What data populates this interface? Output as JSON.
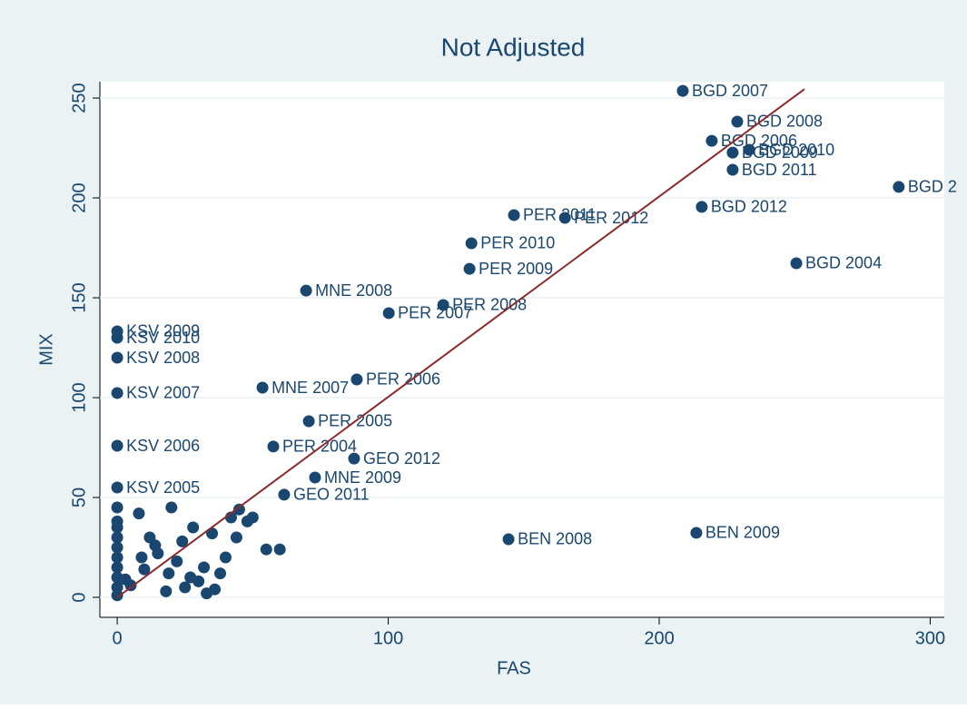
{
  "chart_data": {
    "type": "scatter",
    "title": "Not Adjusted",
    "xlabel": "FAS",
    "ylabel": "MIX",
    "xlim": [
      -6.4,
      305.2
    ],
    "ylim": [
      -10,
      258.2
    ],
    "xticks": [
      0,
      100,
      200,
      300
    ],
    "yticks": [
      0,
      50,
      100,
      150,
      200,
      250
    ],
    "grid": true,
    "series": [
      {
        "style": "markers",
        "color": "#1a476f",
        "x": [
          208.7,
          228.8,
          219.4,
          227.1,
          233.2,
          227.1,
          288.4,
          215.7,
          250.6,
          146.4,
          165.2,
          130.7,
          130.0,
          120.3,
          100.2,
          69.7,
          88.4,
          53.6,
          70.7,
          57.6,
          87.4,
          73.0,
          144.4,
          213.7,
          0,
          0,
          0,
          0,
          0,
          0,
          61.6
        ],
        "values": [
          253.6,
          238.2,
          228.6,
          222.7,
          224.1,
          214.1,
          205.5,
          195.5,
          167.3,
          191.4,
          190.0,
          177.3,
          164.5,
          146.4,
          142.3,
          153.6,
          109.1,
          105.0,
          88.2,
          75.5,
          69.5,
          60.0,
          29.1,
          32.3,
          133.2,
          130.0,
          120.0,
          102.3,
          75.9,
          55.0,
          51.4
        ],
        "labels": [
          "BGD 2007",
          "BGD 2008",
          "BGD 2006",
          "BGD 2009",
          "BGD 2010",
          "BGD 2011",
          "BGD 2",
          "BGD 2012",
          "BGD 2004",
          "PER 2011",
          "PER 2012",
          "PER 2010",
          "PER 2009",
          "PER 2008",
          "PER 2007",
          "MNE 2008",
          "PER 2006",
          "MNE 2007",
          "PER 2005",
          "PER 2004",
          "GEO 2012",
          "MNE 2009",
          "BEN 2008",
          "BEN 2009",
          "KSV 2009",
          "KSV 2010",
          "KSV 2008",
          "KSV 2007",
          "KSV 2006",
          "KSV 2005",
          "GEO 2011"
        ]
      },
      {
        "style": "markers",
        "color": "#1a476f",
        "x": [
          0,
          0,
          0,
          0,
          0,
          0,
          0,
          0,
          0,
          0,
          8,
          12,
          15,
          20,
          22,
          28,
          35,
          42,
          48,
          55,
          60,
          45,
          38,
          30,
          25,
          18,
          10,
          5,
          3,
          14,
          24,
          32,
          40,
          50,
          33,
          27,
          19,
          9,
          36,
          44
        ],
        "values": [
          45,
          38,
          35,
          30,
          25,
          20,
          15,
          10,
          5,
          1,
          42,
          30,
          22,
          45,
          18,
          35,
          32,
          40,
          38,
          24,
          24,
          44,
          12,
          8,
          5,
          3,
          14,
          6,
          9,
          26,
          28,
          15,
          20,
          40,
          2,
          10,
          12,
          20,
          4,
          30
        ]
      },
      {
        "style": "line",
        "color": "#8b2a2a",
        "x": [
          0,
          253.6
        ],
        "values": [
          0,
          254.5
        ]
      }
    ]
  }
}
